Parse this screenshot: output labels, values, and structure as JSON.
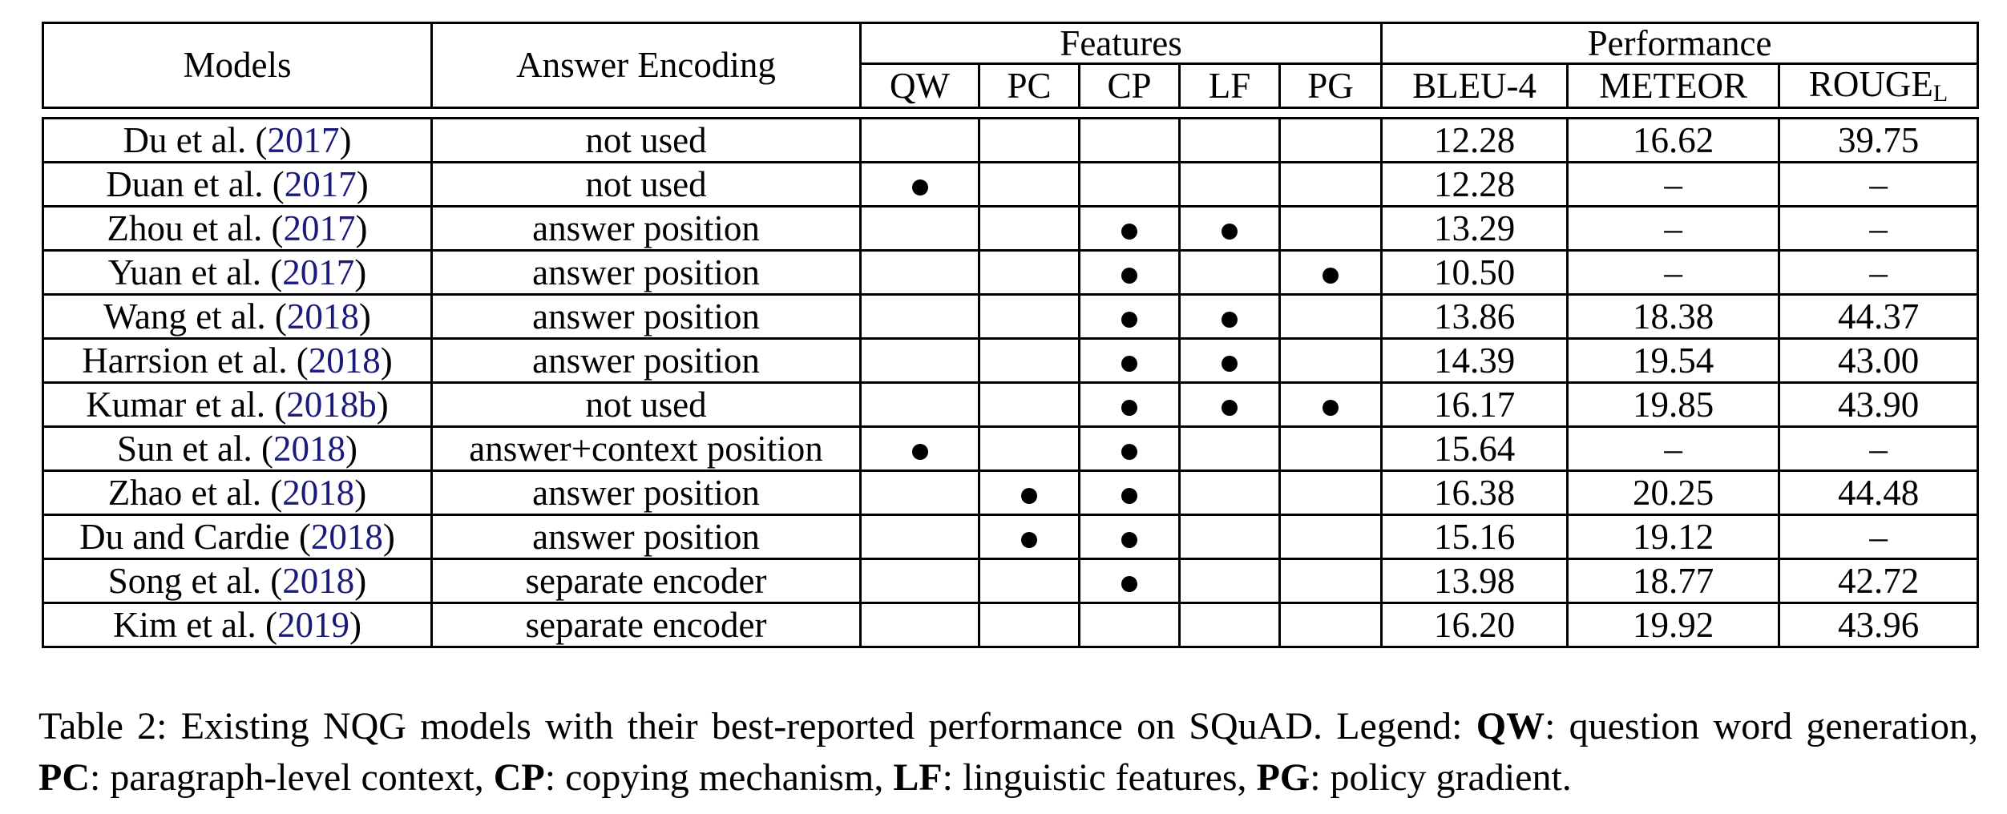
{
  "table": {
    "header": {
      "models": "Models",
      "answer_encoding": "Answer Encoding",
      "features_group": "Features",
      "performance_group": "Performance",
      "features": [
        "QW",
        "PC",
        "CP",
        "LF",
        "PG"
      ],
      "metrics": [
        "BLEU-4",
        "METEOR",
        "ROUGE"
      ],
      "rouge_sub": "L"
    },
    "rows": [
      {
        "author": "Du et al. (",
        "year": "2017",
        "close": ")",
        "encoding": "not used",
        "qw": false,
        "pc": false,
        "cp": false,
        "lf": false,
        "pg": false,
        "bleu": "12.28",
        "meteor": "16.62",
        "rouge": "39.75",
        "best": false
      },
      {
        "author": "Duan et al. (",
        "year": "2017",
        "close": ")",
        "encoding": "not used",
        "qw": true,
        "pc": false,
        "cp": false,
        "lf": false,
        "pg": false,
        "bleu": "12.28",
        "meteor": "–",
        "rouge": "–",
        "best": false
      },
      {
        "author": "Zhou et al. (",
        "year": "2017",
        "close": ")",
        "encoding": "answer position",
        "qw": false,
        "pc": false,
        "cp": true,
        "lf": true,
        "pg": false,
        "bleu": "13.29",
        "meteor": "–",
        "rouge": "–",
        "best": false
      },
      {
        "author": "Yuan et al. (",
        "year": "2017",
        "close": ")",
        "encoding": "answer position",
        "qw": false,
        "pc": false,
        "cp": true,
        "lf": false,
        "pg": true,
        "bleu": "10.50",
        "meteor": "–",
        "rouge": "–",
        "best": false
      },
      {
        "author": "Wang et al. (",
        "year": "2018",
        "close": ")",
        "encoding": "answer position",
        "qw": false,
        "pc": false,
        "cp": true,
        "lf": true,
        "pg": false,
        "bleu": "13.86",
        "meteor": "18.38",
        "rouge": "44.37",
        "best": false
      },
      {
        "author": "Harrsion et al. (",
        "year": "2018",
        "close": ")",
        "encoding": "answer position",
        "qw": false,
        "pc": false,
        "cp": true,
        "lf": true,
        "pg": false,
        "bleu": "14.39",
        "meteor": "19.54",
        "rouge": "43.00",
        "best": false
      },
      {
        "author": "Kumar et al. (",
        "year": "2018b",
        "close": ")",
        "encoding": "not used",
        "qw": false,
        "pc": false,
        "cp": true,
        "lf": true,
        "pg": true,
        "bleu": "16.17",
        "meteor": "19.85",
        "rouge": "43.90",
        "best": false
      },
      {
        "author": "Sun et al. (",
        "year": "2018",
        "close": ")",
        "encoding": "answer+context position",
        "qw": true,
        "pc": false,
        "cp": true,
        "lf": false,
        "pg": false,
        "bleu": "15.64",
        "meteor": "–",
        "rouge": "–",
        "best": false
      },
      {
        "author": "Zhao et al. (",
        "year": "2018",
        "close": ")",
        "encoding": "answer position",
        "qw": false,
        "pc": true,
        "cp": true,
        "lf": false,
        "pg": false,
        "bleu": "16.38",
        "meteor": "20.25",
        "rouge": "44.48",
        "best": true
      },
      {
        "author": "Du and Cardie (",
        "year": "2018",
        "close": ")",
        "encoding": "answer position",
        "qw": false,
        "pc": true,
        "cp": true,
        "lf": false,
        "pg": false,
        "bleu": "15.16",
        "meteor": "19.12",
        "rouge": "–",
        "best": false
      },
      {
        "author": "Song et al. (",
        "year": "2018",
        "close": ")",
        "encoding": "separate encoder",
        "qw": false,
        "pc": false,
        "cp": true,
        "lf": false,
        "pg": false,
        "bleu": "13.98",
        "meteor": "18.77",
        "rouge": "42.72",
        "best": false
      },
      {
        "author": "Kim et al. (",
        "year": "2019",
        "close": ")",
        "encoding": "separate encoder",
        "qw": false,
        "pc": false,
        "cp": false,
        "lf": false,
        "pg": false,
        "bleu": "16.20",
        "meteor": "19.92",
        "rouge": "43.96",
        "best": false
      }
    ]
  },
  "caption": {
    "label": "Table 2:",
    "intro": " Existing NQG models with their best-reported performance on SQuAD. Legend: ",
    "legend": [
      {
        "key": "QW",
        "text": ": question word generation, "
      },
      {
        "key": "PC",
        "text": ": paragraph-level context, "
      },
      {
        "key": "CP",
        "text": ": copying mechanism, "
      },
      {
        "key": "LF",
        "text": ": linguistic features, "
      },
      {
        "key": "PG",
        "text": ": policy gradient."
      }
    ]
  }
}
